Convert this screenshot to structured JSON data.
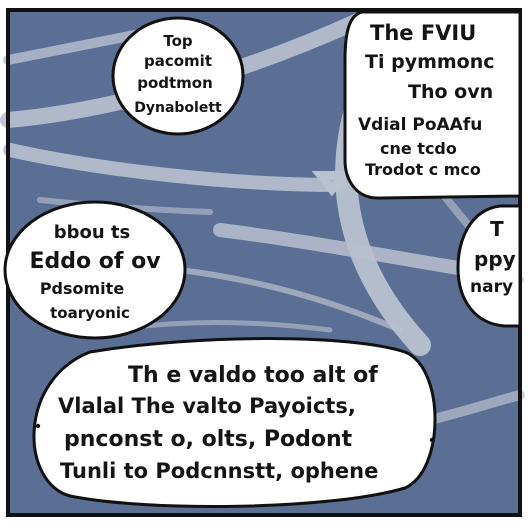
{
  "panel": {
    "background": "#5b6f94",
    "stroke_color": "#b9c1cf",
    "bubble_fill": "#ffffff",
    "ink": "#141414"
  },
  "bubbles": {
    "top_left": {
      "lines": [
        "Top",
        "pacomit",
        "podtmon",
        "Dynabolett"
      ]
    },
    "top_right": {
      "lines": [
        "The FVIU",
        "Ti pymmonc",
        "Tho ovn",
        "Vdial PoAAfu",
        "cne tcdo",
        "Trodot c mco"
      ]
    },
    "middle_left": {
      "lines": [
        "bbou ts",
        "Eddo of ov",
        "Pdsomite",
        "toaryonic"
      ]
    },
    "middle_right": {
      "lines": [
        "T",
        "ppy",
        "nary"
      ]
    },
    "bottom": {
      "lines": [
        "Th e valdo too  alt  of",
        "Vlalal The valto   Payoicts,",
        "pnconst o, olts, Podont",
        "Tunli to Podcnnstt,   ophene"
      ]
    }
  }
}
